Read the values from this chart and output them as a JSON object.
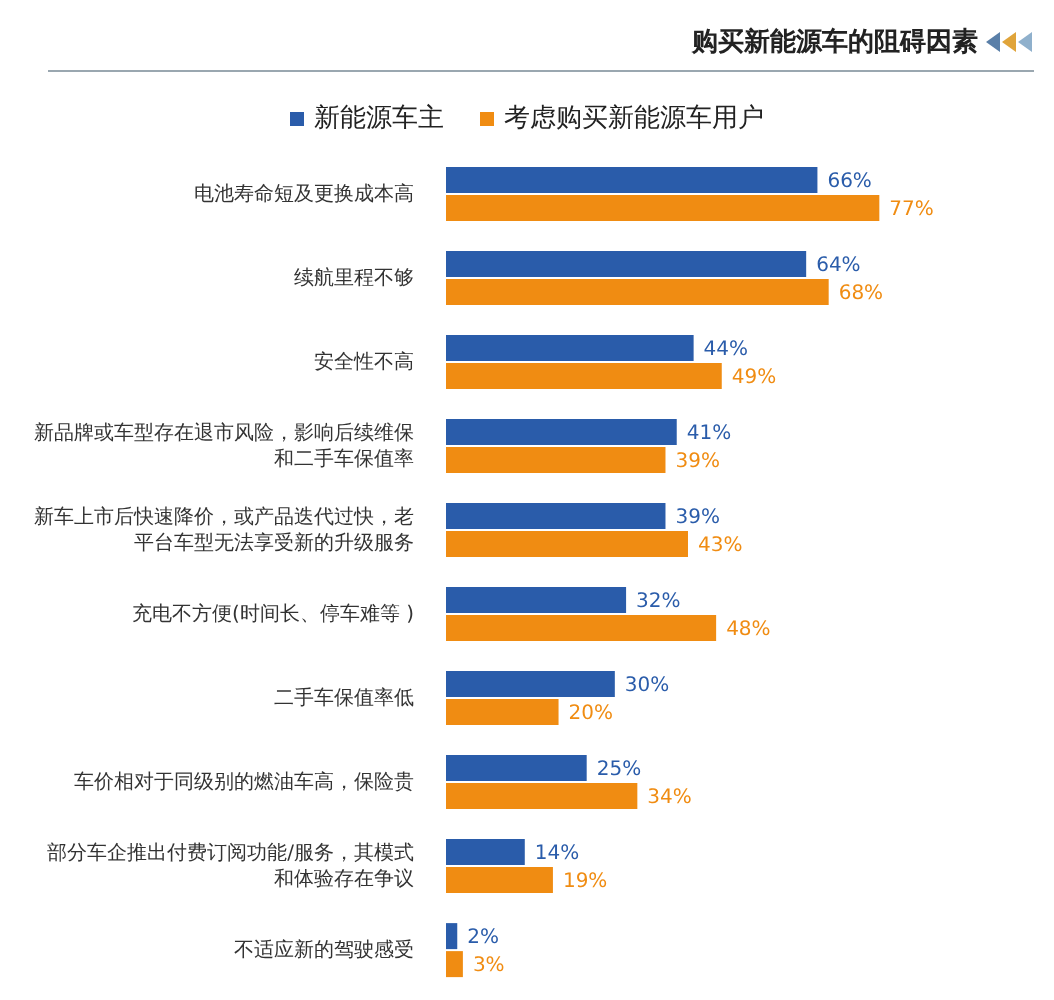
{
  "chart_data": {
    "type": "bar",
    "orientation": "horizontal",
    "title": "购买新能源车的阻碍因素",
    "legend": "top",
    "categories": [
      "电池寿命短及更换成本高",
      "续航里程不够",
      "安全性不高",
      "新品牌或车型存在退市风险，影响后续维保和二手车保值率",
      "新车上市后快速降价，或产品迭代过快，老平台车型无法享受新的升级服务",
      "充电不方便(时间长、停车难等 )",
      "二手车保值率低",
      "车价相对于同级别的燃油车高，保险贵",
      "部分车企推出付费订阅功能/服务，其模式和体验存在争议",
      "不适应新的驾驶感受"
    ],
    "series": [
      {
        "name": "新能源车主",
        "color": "#2a5caa",
        "values": [
          66,
          64,
          44,
          41,
          39,
          32,
          30,
          25,
          14,
          2
        ],
        "value_labels": [
          "66%",
          "64%",
          "44%",
          "41%",
          "39%",
          "32%",
          "30%",
          "25%",
          "14%",
          "2%"
        ]
      },
      {
        "name": "考虑购买新能源车用户",
        "color": "#f08c12",
        "values": [
          77,
          68,
          49,
          39,
          43,
          48,
          20,
          34,
          19,
          3
        ],
        "value_labels": [
          "77%",
          "68%",
          "49%",
          "39%",
          "43%",
          "48%",
          "20%",
          "34%",
          "19%",
          "3%"
        ]
      }
    ]
  }
}
